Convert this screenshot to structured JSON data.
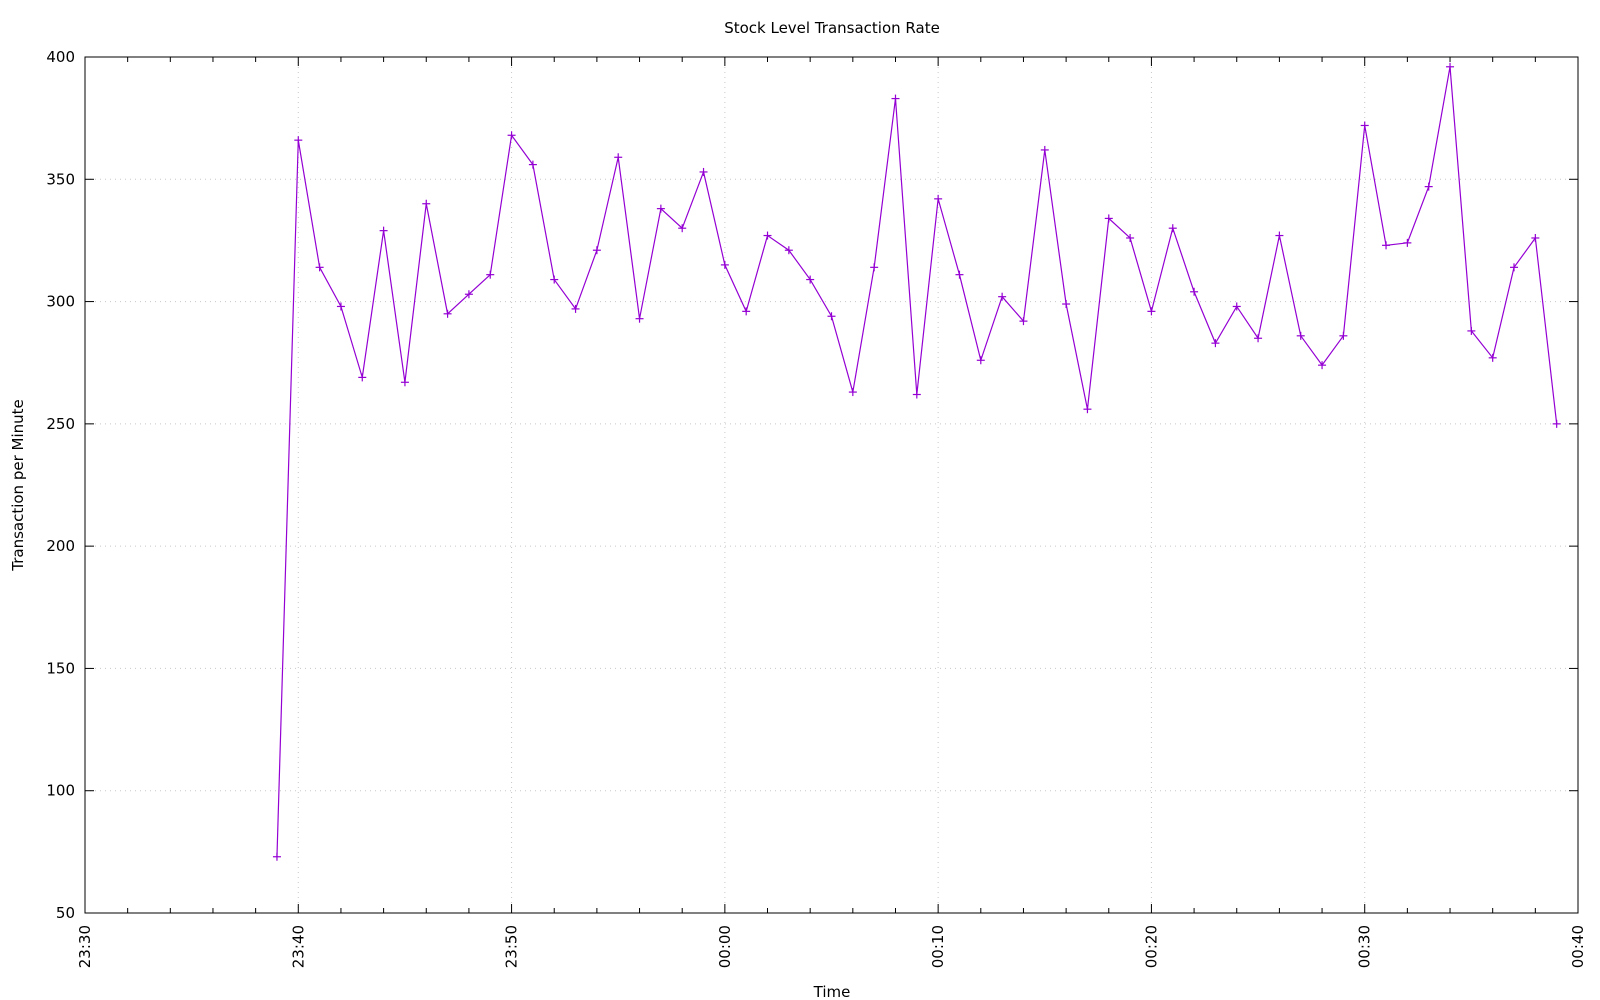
{
  "chart_data": {
    "type": "line",
    "title": "Stock Level Transaction Rate",
    "xlabel": "Time",
    "ylabel": "Transaction per Minute",
    "ylim": [
      50,
      400
    ],
    "yticks": [
      50,
      100,
      150,
      200,
      250,
      300,
      350,
      400
    ],
    "xlim": [
      "23:30",
      "00:40"
    ],
    "xticks": [
      "23:30",
      "23:40",
      "23:50",
      "00:00",
      "00:10",
      "00:20",
      "00:30",
      "00:40"
    ],
    "grid": true,
    "legend": "none",
    "series_color": "#9400d3",
    "series": [
      {
        "x": [
          "23:39",
          "23:40",
          "23:41",
          "23:42",
          "23:43",
          "23:44",
          "23:45",
          "23:46",
          "23:47",
          "23:48",
          "23:49",
          "23:50",
          "23:51",
          "23:52",
          "23:53",
          "23:54",
          "23:55",
          "23:56",
          "23:57",
          "23:58",
          "23:59",
          "00:00",
          "00:01",
          "00:02",
          "00:03",
          "00:04",
          "00:05",
          "00:06",
          "00:07",
          "00:08",
          "00:09",
          "00:10",
          "00:11",
          "00:12",
          "00:13",
          "00:14",
          "00:15",
          "00:16",
          "00:17",
          "00:18",
          "00:19",
          "00:20",
          "00:21",
          "00:22",
          "00:23",
          "00:24",
          "00:25",
          "00:26",
          "00:27",
          "00:28",
          "00:29",
          "00:30",
          "00:31",
          "00:32",
          "00:33",
          "00:34",
          "00:35",
          "00:36",
          "00:37",
          "00:38",
          "00:39"
        ],
        "values": [
          73,
          366,
          314,
          298,
          269,
          329,
          267,
          340,
          295,
          303,
          311,
          368,
          356,
          309,
          297,
          321,
          359,
          293,
          338,
          330,
          353,
          315,
          296,
          327,
          321,
          309,
          294,
          263,
          314,
          383,
          262,
          342,
          311,
          276,
          302,
          292,
          362,
          299,
          256,
          334,
          326,
          296,
          330,
          304,
          283,
          298,
          285,
          327,
          286,
          274,
          286,
          372,
          323,
          324,
          347,
          396,
          288,
          277,
          314,
          326,
          250
        ]
      }
    ]
  }
}
